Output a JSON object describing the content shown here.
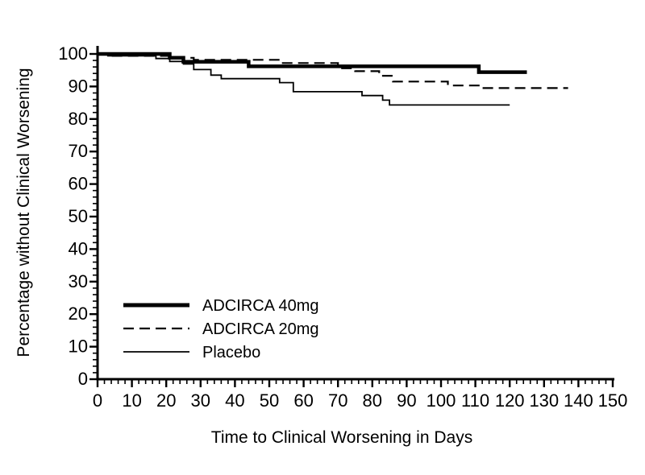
{
  "colors": {
    "line": "#000000",
    "background": "#ffffff"
  },
  "chart_data": {
    "type": "line",
    "subtype": "kaplan-meier-step",
    "title": "",
    "xlabel": "Time to Clinical Worsening in Days",
    "ylabel": "Percentage without Clinical Worsening",
    "xlim": [
      0,
      150
    ],
    "ylim": [
      0,
      100
    ],
    "x_ticks": [
      0,
      10,
      20,
      30,
      40,
      50,
      60,
      70,
      80,
      90,
      100,
      110,
      120,
      130,
      140,
      150
    ],
    "y_ticks": [
      0,
      10,
      20,
      30,
      40,
      50,
      60,
      70,
      80,
      90,
      100
    ],
    "minor_tick_step": 2,
    "grid": false,
    "legend_position": "inside-lower-left",
    "series": [
      {
        "name": "ADCIRCA 40mg",
        "style": "solid-thick",
        "points": [
          [
            0,
            100
          ],
          [
            21,
            98.8
          ],
          [
            25,
            97.6
          ],
          [
            44,
            96.2
          ],
          [
            111,
            94.4
          ],
          [
            125,
            94.4
          ]
        ]
      },
      {
        "name": "ADCIRCA 20mg",
        "style": "dashed",
        "points": [
          [
            0,
            100
          ],
          [
            3,
            99.4
          ],
          [
            22,
            98.8
          ],
          [
            28,
            98.2
          ],
          [
            53,
            97.2
          ],
          [
            70,
            95.6
          ],
          [
            75,
            94.7
          ],
          [
            82,
            93.3
          ],
          [
            86,
            91.5
          ],
          [
            102,
            90.3
          ],
          [
            112,
            89.5
          ],
          [
            137,
            89.5
          ]
        ]
      },
      {
        "name": "Placebo",
        "style": "solid-thin",
        "points": [
          [
            0,
            100
          ],
          [
            3,
            99.4
          ],
          [
            17,
            98.6
          ],
          [
            21,
            97.7
          ],
          [
            25,
            96.9
          ],
          [
            28,
            95.2
          ],
          [
            33,
            93.5
          ],
          [
            36,
            92.4
          ],
          [
            53,
            91.2
          ],
          [
            57,
            88.4
          ],
          [
            77,
            87.2
          ],
          [
            83,
            85.8
          ],
          [
            85,
            84.3
          ],
          [
            120,
            84.3
          ]
        ]
      }
    ]
  }
}
